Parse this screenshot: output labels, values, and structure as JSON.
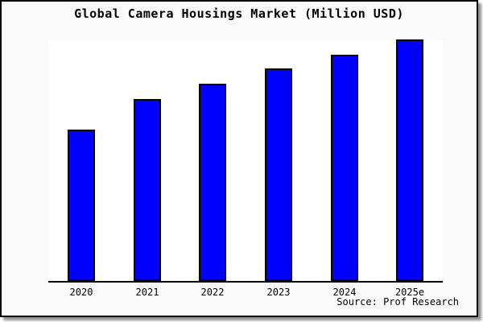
{
  "window": {
    "background": "#fafafa",
    "border_color": "#000000",
    "page_background": "#ffffff"
  },
  "chart_data": {
    "type": "bar",
    "title": "Global Camera Housings Market (Million USD)",
    "categories": [
      "2020",
      "2021",
      "2022",
      "2023",
      "2024",
      "2025e"
    ],
    "values": [
      62.7,
      75.2,
      81.6,
      87.9,
      93.8,
      100
    ],
    "values_note": "no y-axis scale or data labels shown; values are relative bar heights with tallest bar (2025e) = 100",
    "xlabel": "",
    "ylabel": "",
    "ylim": [
      0,
      100
    ],
    "grid": false,
    "legend": false,
    "plot_background": "#ffffff",
    "bar_fill_color": "#0000ff",
    "bar_edge_color": "#000000",
    "axis_color": "#000000",
    "text_color": "#000000"
  },
  "source": {
    "label": "Source: Prof Research"
  }
}
